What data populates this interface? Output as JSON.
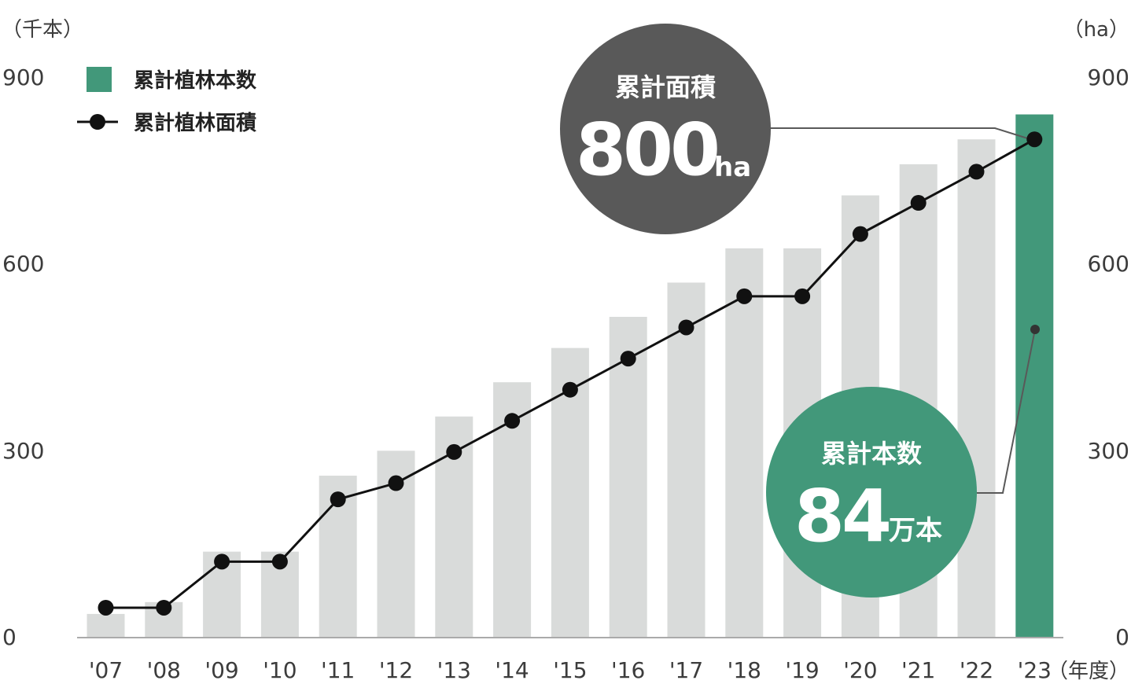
{
  "chart_data": {
    "type": "bar",
    "categories": [
      "'07",
      "'08",
      "'09",
      "'10",
      "'11",
      "'12",
      "'13",
      "'14",
      "'15",
      "'16",
      "'17",
      "'18",
      "'19",
      "'20",
      "'21",
      "'22",
      "'23"
    ],
    "series": [
      {
        "name": "累計植林本数",
        "type": "bar",
        "axis": "left",
        "values": [
          38,
          57,
          138,
          138,
          260,
          300,
          355,
          410,
          465,
          515,
          570,
          625,
          625,
          710,
          760,
          800,
          840
        ],
        "color": "#d9dbda",
        "highlight_color": "#42987a",
        "highlight_index": 16
      },
      {
        "name": "累計植林面積",
        "type": "line",
        "axis": "right",
        "values": [
          48,
          48,
          122,
          122,
          222,
          248,
          298,
          348,
          398,
          448,
          498,
          548,
          548,
          648,
          698,
          748,
          800
        ],
        "color": "#111111"
      }
    ],
    "yaxis_left": {
      "unit": "（千本）",
      "ticks": [
        "0",
        "300",
        "600",
        "900"
      ],
      "ylim": [
        0,
        900
      ]
    },
    "yaxis_right": {
      "unit": "（ha）",
      "ticks": [
        "0",
        "300",
        "600",
        "900"
      ],
      "ylim": [
        0,
        900
      ]
    },
    "xaxis": {
      "unit": "（年度）"
    },
    "legend": {
      "position": "top-left"
    },
    "annotations": [
      {
        "title": "累計面積",
        "value": "800",
        "unit": "ha",
        "color": "#595959"
      },
      {
        "title": "累計本数",
        "value": "84",
        "unit": "万本",
        "color": "#42987a"
      }
    ],
    "grid": false
  }
}
